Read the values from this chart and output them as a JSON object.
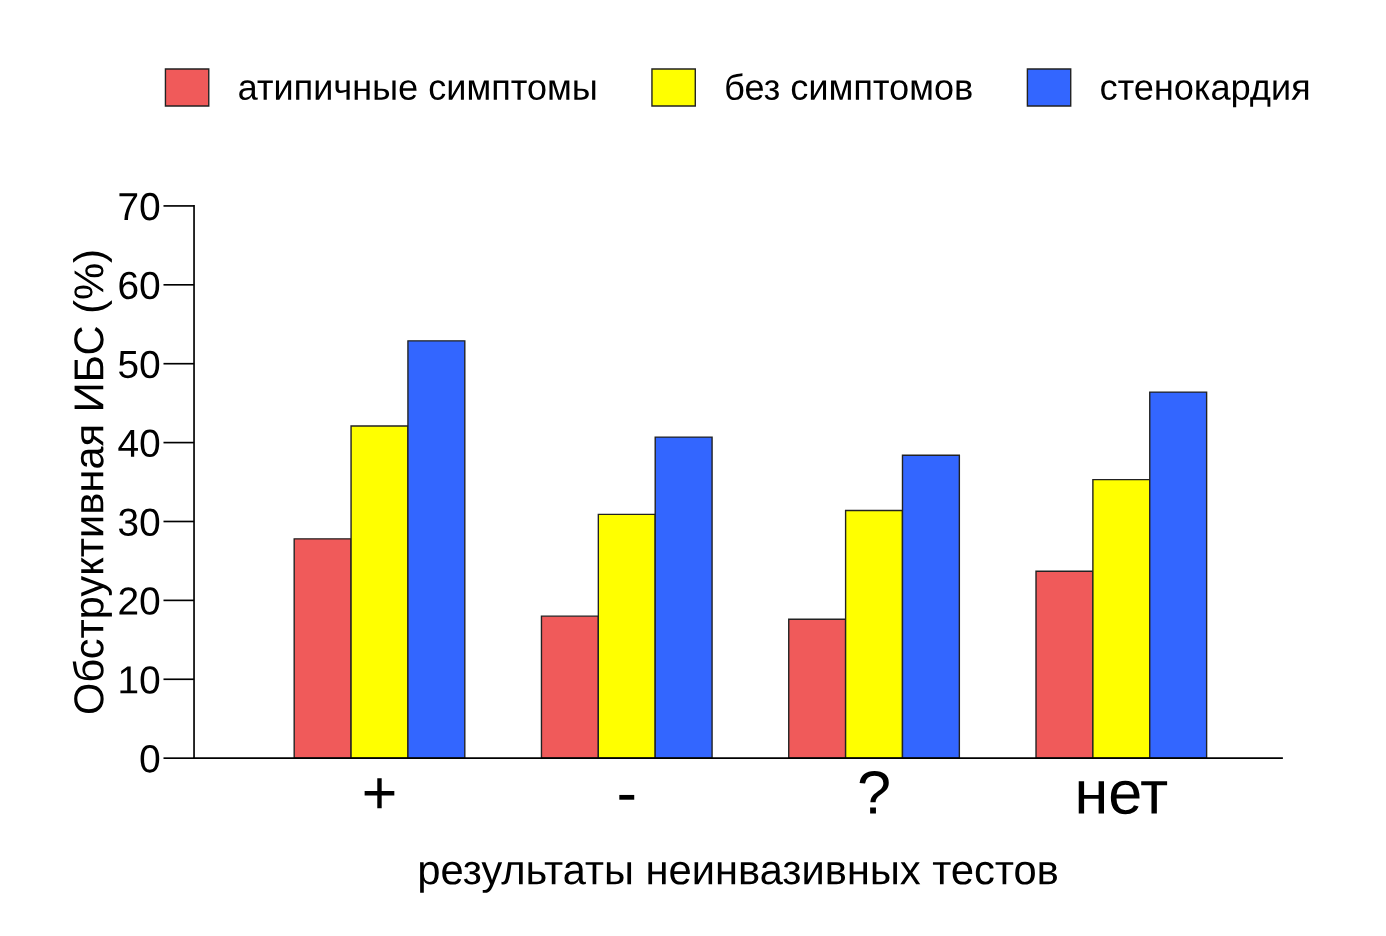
{
  "chart_data": {
    "type": "bar",
    "xlabel": "результаты неинвазивных тестов",
    "ylabel": "Обструктивная ИБС (%)",
    "categories": [
      "+",
      "-",
      "?",
      "нет"
    ],
    "series": [
      {
        "name": "атипичные симптомы",
        "color": "#f05a5a",
        "values": [
          27.8,
          18.0,
          17.6,
          23.7
        ]
      },
      {
        "name": "без симптомов",
        "color": "#ffff00",
        "values": [
          42.1,
          30.9,
          31.4,
          35.3
        ]
      },
      {
        "name": "стенокардия",
        "color": "#3366ff",
        "values": [
          52.9,
          40.7,
          38.4,
          46.4
        ]
      }
    ],
    "ylim": [
      0,
      70
    ],
    "yticks": [
      0,
      10,
      20,
      30,
      40,
      50,
      60,
      70
    ],
    "grid": false,
    "legend": "top"
  }
}
